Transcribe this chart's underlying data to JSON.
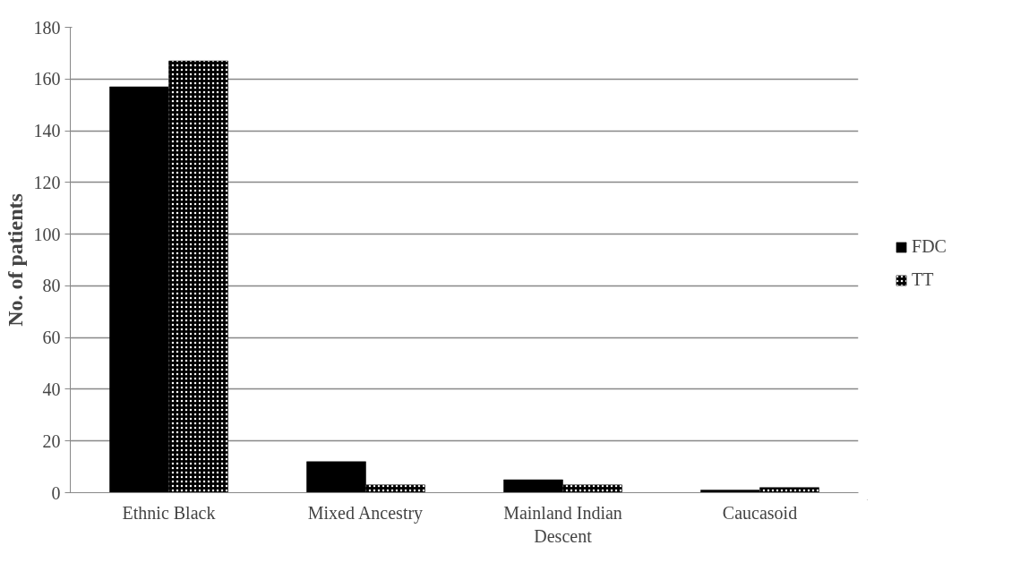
{
  "chart_data": {
    "type": "bar",
    "ylabel": "No. of patients",
    "categories": [
      "Ethnic Black",
      "Mixed Ancestry",
      "Mainland Indian Descent",
      "Caucasoid"
    ],
    "series": [
      {
        "name": "FDC",
        "color": "#000000",
        "values": [
          157,
          12,
          5,
          1
        ]
      },
      {
        "name": "TT",
        "color": "#000000",
        "values": [
          167,
          3,
          3,
          2
        ]
      }
    ],
    "ylim": [
      0,
      180
    ],
    "yticks": [
      0,
      20,
      40,
      60,
      80,
      100,
      120,
      140,
      160,
      180
    ],
    "grid": "y",
    "legend": "right"
  }
}
